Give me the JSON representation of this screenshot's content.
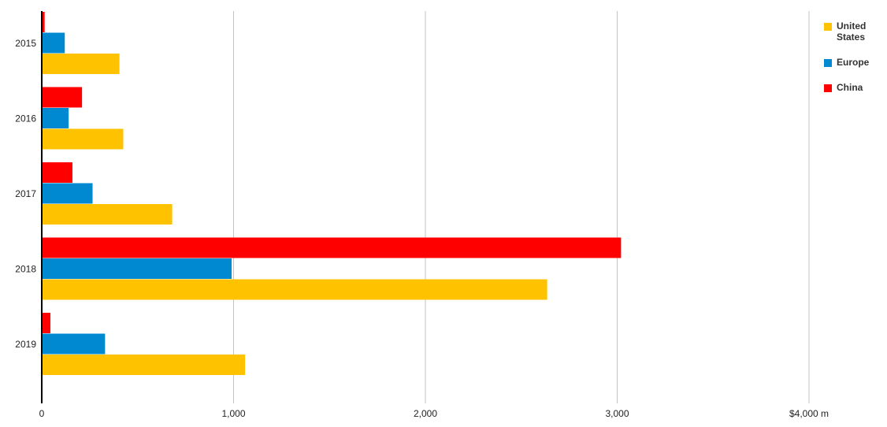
{
  "chart_data": {
    "type": "bar",
    "orientation": "horizontal",
    "title": "",
    "xlabel": "",
    "ylabel": "",
    "categories": [
      "2015",
      "2016",
      "2017",
      "2018",
      "2019"
    ],
    "series": [
      {
        "name": "China",
        "color": "#ff0000",
        "values": [
          15,
          210,
          160,
          3020,
          45
        ]
      },
      {
        "name": "Europe",
        "color": "#0088d1",
        "values": [
          120,
          140,
          265,
          990,
          330
        ]
      },
      {
        "name": "United States",
        "color": "#ffc200",
        "values": [
          405,
          425,
          680,
          2635,
          1060
        ]
      }
    ],
    "xlim": [
      0,
      4000
    ],
    "x_ticks": [
      {
        "value": 0,
        "label": "0"
      },
      {
        "value": 1000,
        "label": "1,000"
      },
      {
        "value": 2000,
        "label": "2,000"
      },
      {
        "value": 3000,
        "label": "3,000"
      },
      {
        "value": 4000,
        "label": "$4,000 m"
      }
    ],
    "grid": "vertical",
    "legend": {
      "position": "right",
      "items": [
        {
          "name": "United States",
          "color": "#ffc200"
        },
        {
          "name": "Europe",
          "color": "#0088d1"
        },
        {
          "name": "China",
          "color": "#ff0000"
        }
      ]
    }
  }
}
